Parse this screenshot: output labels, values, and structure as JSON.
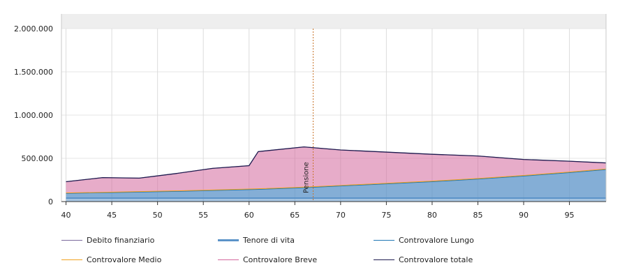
{
  "chart_data": {
    "type": "area",
    "x": [
      40,
      44,
      48,
      52,
      56,
      60,
      61,
      66,
      70,
      75,
      80,
      85,
      90,
      95,
      99
    ],
    "xticks": [
      "40",
      "45",
      "50",
      "55",
      "60",
      "65",
      "70",
      "75",
      "80",
      "85",
      "90",
      "95"
    ],
    "xlim": [
      39.5,
      99
    ],
    "yticks": [
      "0",
      "500.000",
      "1.000.000",
      "1.500.000",
      "2.000.000"
    ],
    "ylim": [
      0,
      2000000
    ],
    "grid": true,
    "annotation": {
      "label": "Pensione",
      "x": 67
    },
    "series": [
      {
        "name": "Debito finanziario",
        "color": "#7b6a9d",
        "values": [
          0,
          0,
          0,
          0,
          0,
          0,
          0,
          0,
          0,
          0,
          0,
          0,
          0,
          0,
          0
        ]
      },
      {
        "name": "Tenore di vita",
        "color": "#5b93c8",
        "values": [
          40000,
          40000,
          40000,
          40000,
          40000,
          40000,
          40000,
          40000,
          40000,
          40000,
          40000,
          40000,
          40000,
          40000,
          40000
        ]
      },
      {
        "name": "Controvalore Lungo",
        "color": "#1f77b4",
        "values": [
          55000,
          62000,
          70000,
          78000,
          88000,
          98000,
          101000,
          120000,
          140000,
          165000,
          190000,
          220000,
          255000,
          295000,
          330000
        ]
      },
      {
        "name": "Controvalore Medio",
        "color": "#f0a21e",
        "values": [
          5000,
          5000,
          6000,
          6000,
          6000,
          7000,
          7000,
          7000,
          7000,
          7000,
          7000,
          7000,
          7000,
          7000,
          7000
        ]
      },
      {
        "name": "Controvalore Breve",
        "color": "#d3679d",
        "values": [
          130000,
          170000,
          155000,
          200000,
          250000,
          270000,
          430000,
          465000,
          410000,
          360000,
          310000,
          260000,
          185000,
          125000,
          70000
        ]
      },
      {
        "name": "Controvalore totale",
        "color": "#1c1b4f",
        "values": [
          230000,
          277000,
          271000,
          324000,
          384000,
          415000,
          578000,
          632000,
          597000,
          572000,
          547000,
          527000,
          487000,
          467000,
          447000
        ]
      }
    ]
  }
}
